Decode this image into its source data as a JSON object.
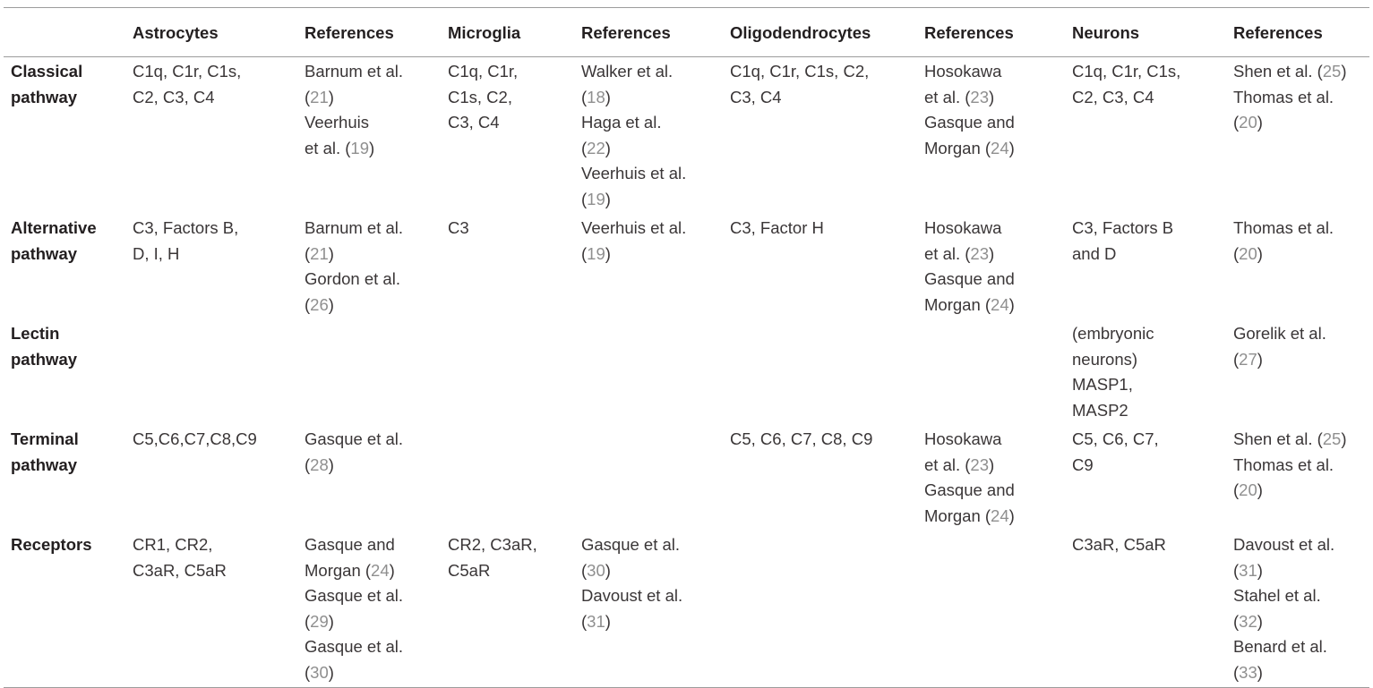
{
  "headers": [
    "",
    "Astrocytes",
    "References",
    "Microglia",
    "References",
    "Oligodendrocytes",
    "References",
    "Neurons",
    "References"
  ],
  "rows": [
    {
      "label_lines": [
        "Classical",
        "pathway"
      ],
      "cells": [
        {
          "lines": [
            [
              "C1q, C1r, C1s,"
            ],
            [
              "C2, C3, C4"
            ]
          ]
        },
        {
          "lines": [
            [
              "Barnum et al."
            ],
            [
              "(",
              "21",
              ")"
            ],
            [
              "Veerhuis"
            ],
            [
              "et al. (",
              "19",
              ")"
            ]
          ]
        },
        {
          "lines": [
            [
              "C1q, C1r,"
            ],
            [
              "C1s, C2,"
            ],
            [
              "C3, C4"
            ]
          ]
        },
        {
          "lines": [
            [
              "Walker et al."
            ],
            [
              "(",
              "18",
              ")"
            ],
            [
              "Haga et al."
            ],
            [
              "(",
              "22",
              ")"
            ],
            [
              "Veerhuis et al."
            ],
            [
              "(",
              "19",
              ")"
            ]
          ]
        },
        {
          "lines": [
            [
              "C1q, C1r, C1s, C2,"
            ],
            [
              "C3, C4"
            ]
          ]
        },
        {
          "lines": [
            [
              "Hosokawa"
            ],
            [
              "et al. (",
              "23",
              ")"
            ],
            [
              "Gasque and"
            ],
            [
              "Morgan (",
              "24",
              ")"
            ]
          ]
        },
        {
          "lines": [
            [
              "C1q, C1r, C1s,"
            ],
            [
              "C2, C3, C4"
            ]
          ]
        },
        {
          "lines": [
            [
              "Shen et al. (",
              "25",
              ")"
            ],
            [
              "Thomas et al."
            ],
            [
              "(",
              "20",
              ")"
            ]
          ]
        }
      ]
    },
    {
      "label_lines": [
        "Alternative",
        "pathway"
      ],
      "cells": [
        {
          "lines": [
            [
              "C3, Factors B,"
            ],
            [
              "D, I, H"
            ]
          ]
        },
        {
          "lines": [
            [
              "Barnum et al."
            ],
            [
              "(",
              "21",
              ")"
            ],
            [
              "Gordon et al."
            ],
            [
              "(",
              "26",
              ")"
            ]
          ]
        },
        {
          "lines": [
            [
              "C3"
            ]
          ]
        },
        {
          "lines": [
            [
              "Veerhuis et al."
            ],
            [
              "(",
              "19",
              ")"
            ]
          ]
        },
        {
          "lines": [
            [
              "C3, Factor H"
            ]
          ]
        },
        {
          "lines": [
            [
              "Hosokawa"
            ],
            [
              "et al. (",
              "23",
              ")"
            ],
            [
              "Gasque and"
            ],
            [
              "Morgan (",
              "24",
              ")"
            ]
          ]
        },
        {
          "lines": [
            [
              "C3, Factors B"
            ],
            [
              "and D"
            ]
          ]
        },
        {
          "lines": [
            [
              "Thomas et al."
            ],
            [
              "(",
              "20",
              ")"
            ]
          ]
        }
      ]
    },
    {
      "label_lines": [
        "Lectin",
        "pathway"
      ],
      "cells": [
        {
          "lines": []
        },
        {
          "lines": []
        },
        {
          "lines": []
        },
        {
          "lines": []
        },
        {
          "lines": []
        },
        {
          "lines": []
        },
        {
          "lines": [
            [
              "(embryonic"
            ],
            [
              "neurons)"
            ],
            [
              "MASP1,"
            ],
            [
              "MASP2"
            ]
          ]
        },
        {
          "lines": [
            [
              "Gorelik et al."
            ],
            [
              "(",
              "27",
              ")"
            ]
          ]
        }
      ]
    },
    {
      "label_lines": [
        "Terminal",
        "pathway"
      ],
      "cells": [
        {
          "lines": [
            [
              "C5,C6,C7,C8,C9"
            ]
          ]
        },
        {
          "lines": [
            [
              "Gasque et al."
            ],
            [
              "(",
              "28",
              ")"
            ]
          ]
        },
        {
          "lines": []
        },
        {
          "lines": []
        },
        {
          "lines": [
            [
              "C5, C6, C7, C8, C9"
            ]
          ]
        },
        {
          "lines": [
            [
              "Hosokawa"
            ],
            [
              "et al. (",
              "23",
              ")"
            ],
            [
              "Gasque and"
            ],
            [
              "Morgan (",
              "24",
              ")"
            ]
          ]
        },
        {
          "lines": [
            [
              "C5, C6, C7,"
            ],
            [
              "C9"
            ]
          ]
        },
        {
          "lines": [
            [
              "Shen et al. (",
              "25",
              ")"
            ],
            [
              "Thomas et al."
            ],
            [
              "(",
              "20",
              ")"
            ]
          ]
        }
      ]
    },
    {
      "label_lines": [
        "Receptors"
      ],
      "cells": [
        {
          "lines": [
            [
              "CR1, CR2,"
            ],
            [
              "C3aR, C5aR"
            ]
          ]
        },
        {
          "lines": [
            [
              "Gasque and"
            ],
            [
              "Morgan (",
              "24",
              ")"
            ],
            [
              "Gasque et al."
            ],
            [
              "(",
              "29",
              ")"
            ],
            [
              "Gasque et al."
            ],
            [
              "(",
              "30",
              ")"
            ]
          ]
        },
        {
          "lines": [
            [
              "CR2, C3aR,"
            ],
            [
              "C5aR"
            ]
          ]
        },
        {
          "lines": [
            [
              "Gasque et al."
            ],
            [
              "(",
              "30",
              ")"
            ],
            [
              "Davoust et al."
            ],
            [
              "(",
              "31",
              ")"
            ]
          ]
        },
        {
          "lines": []
        },
        {
          "lines": []
        },
        {
          "lines": [
            [
              "C3aR, C5aR"
            ]
          ]
        },
        {
          "lines": [
            [
              "Davoust et al."
            ],
            [
              "(",
              "31",
              ")"
            ],
            [
              "Stahel et al."
            ],
            [
              "(",
              "32",
              ")"
            ],
            [
              "Benard et al."
            ],
            [
              "(",
              "33",
              ")"
            ]
          ]
        }
      ]
    }
  ]
}
